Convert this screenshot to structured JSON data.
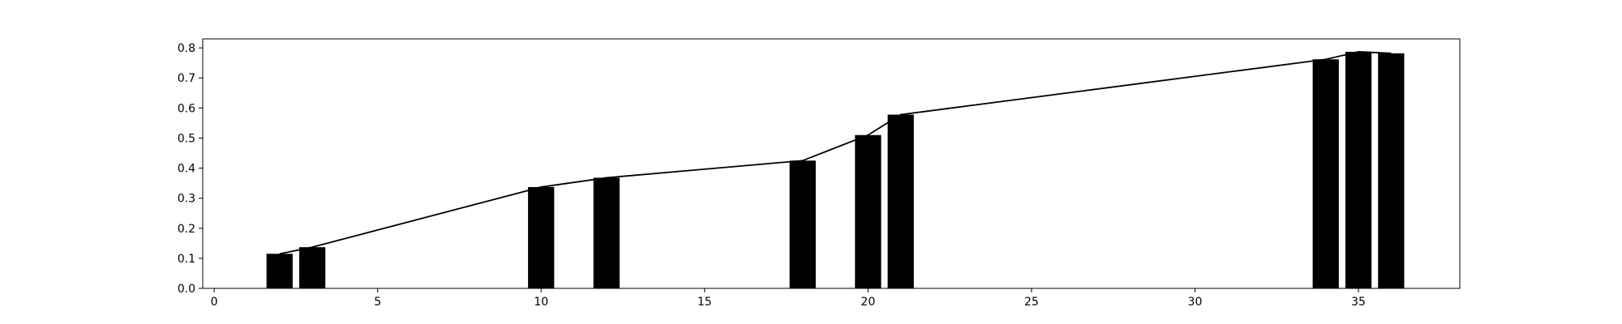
{
  "chart_data": {
    "type": "bar",
    "title": "",
    "xlabel": "",
    "ylabel": "",
    "xlim": [
      -0.35,
      38.1
    ],
    "ylim": [
      0,
      0.83
    ],
    "grid": false,
    "x_ticks": [
      0,
      5,
      10,
      15,
      20,
      25,
      30,
      35
    ],
    "y_ticks": [
      0.0,
      0.1,
      0.2,
      0.3,
      0.4,
      0.5,
      0.6,
      0.7,
      0.8
    ],
    "x_tick_labels": [
      "0",
      "5",
      "10",
      "15",
      "20",
      "25",
      "30",
      "35"
    ],
    "y_tick_labels": [
      "0.0",
      "0.1",
      "0.2",
      "0.3",
      "0.4",
      "0.5",
      "0.6",
      "0.7",
      "0.8"
    ],
    "bar_width": 0.8,
    "bar_color": "#000000",
    "line_color": "#000000",
    "x": [
      2,
      3,
      10,
      12,
      18,
      20,
      21,
      34,
      35,
      36
    ],
    "values": [
      0.115,
      0.137,
      0.337,
      0.368,
      0.425,
      0.51,
      0.578,
      0.762,
      0.787,
      0.782
    ]
  }
}
